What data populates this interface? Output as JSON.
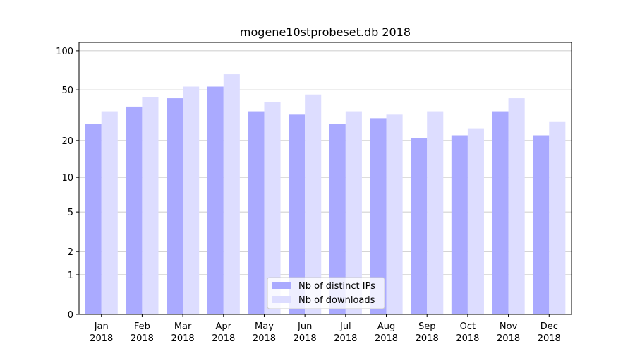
{
  "chart_data": {
    "type": "bar",
    "title": "mogene10stprobeset.db 2018",
    "categories": [
      "Jan 2018",
      "Feb 2018",
      "Mar 2018",
      "Apr 2018",
      "May 2018",
      "Jun 2018",
      "Jul 2018",
      "Aug 2018",
      "Sep 2018",
      "Oct 2018",
      "Nov 2018",
      "Dec 2018"
    ],
    "series": [
      {
        "name": "Nb of distinct IPs",
        "color": "#aaaaff",
        "values": [
          27,
          37,
          43,
          53,
          34,
          32,
          27,
          30,
          21,
          22,
          34,
          22
        ]
      },
      {
        "name": "Nb of downloads",
        "color": "#ddddff",
        "values": [
          34,
          44,
          53,
          66,
          40,
          46,
          34,
          32,
          34,
          25,
          43,
          28
        ]
      }
    ],
    "yscale": "symlog",
    "ylim": [
      0,
      116
    ],
    "yticks": [
      0,
      1,
      2,
      5,
      10,
      20,
      50,
      100
    ],
    "grid": true,
    "legend": "lower center"
  }
}
